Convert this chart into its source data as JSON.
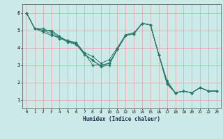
{
  "xlabel": "Humidex (Indice chaleur)",
  "background_color": "#cceae8",
  "grid_color": "#e8a0a0",
  "line_color": "#2a7a6a",
  "xlim": [
    -0.5,
    23.5
  ],
  "ylim": [
    0.5,
    6.5
  ],
  "xticks": [
    0,
    1,
    2,
    3,
    4,
    5,
    6,
    7,
    8,
    9,
    10,
    11,
    12,
    13,
    14,
    15,
    16,
    17,
    18,
    19,
    20,
    21,
    22,
    23
  ],
  "yticks": [
    1,
    2,
    3,
    4,
    5,
    6
  ],
  "series": [
    [
      6.0,
      5.1,
      5.1,
      4.9,
      4.6,
      4.4,
      4.3,
      3.7,
      3.0,
      3.0,
      3.1,
      3.9,
      4.7,
      4.8,
      5.4,
      5.3,
      3.6,
      1.9,
      1.4,
      1.5,
      1.4,
      1.7,
      1.5,
      1.5
    ],
    [
      6.0,
      5.1,
      5.0,
      4.8,
      4.5,
      4.4,
      4.2,
      3.6,
      3.3,
      2.9,
      3.0,
      3.9,
      4.7,
      4.8,
      5.4,
      5.3,
      3.6,
      2.0,
      1.4,
      1.5,
      1.4,
      1.7,
      1.5,
      1.5
    ],
    [
      6.0,
      5.1,
      4.9,
      4.7,
      4.6,
      4.3,
      4.2,
      3.7,
      3.5,
      3.1,
      3.3,
      4.0,
      4.75,
      4.85,
      5.4,
      5.3,
      3.6,
      2.1,
      1.4,
      1.5,
      1.4,
      1.7,
      1.5,
      1.5
    ],
    [
      6.0,
      5.1,
      5.0,
      5.0,
      4.65,
      4.35,
      4.25,
      3.65,
      3.25,
      2.95,
      3.1,
      3.9,
      4.7,
      4.8,
      5.4,
      5.3,
      3.6,
      1.95,
      1.4,
      1.5,
      1.4,
      1.7,
      1.5,
      1.5
    ]
  ]
}
